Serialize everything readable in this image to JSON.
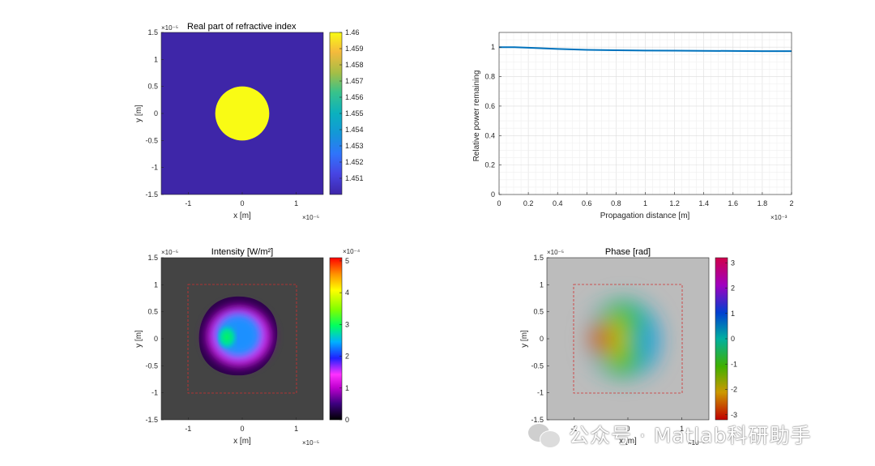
{
  "chart_data": [
    {
      "type": "heatmap",
      "title": "Real part of refractive index",
      "xlabel": "x [m]",
      "ylabel": "y [m]",
      "x_exponent": "×10⁻⁵",
      "y_exponent": "×10⁻⁵",
      "xlim": [
        -1.5,
        1.5
      ],
      "ylim": [
        -1.5,
        1.5
      ],
      "xticks": [
        "-1",
        "0",
        "1"
      ],
      "yticks": [
        "1.5",
        "1",
        "0.5",
        "0",
        "-0.5",
        "-1",
        "-1.5"
      ],
      "core_radius": 0.5,
      "core_index": 1.46,
      "cladding_index": 1.45,
      "colorbar": {
        "ticks": [
          "1.46",
          "1.459",
          "1.458",
          "1.457",
          "1.456",
          "1.455",
          "1.454",
          "1.453",
          "1.452",
          "1.451"
        ],
        "range": [
          1.45,
          1.46
        ],
        "colormap": "parula"
      }
    },
    {
      "type": "line",
      "xlabel": "Propagation distance [m]",
      "ylabel": "Relative power remaining",
      "x_exponent": "×10⁻³",
      "xlim": [
        0,
        2
      ],
      "ylim": [
        0,
        1.1
      ],
      "xticks": [
        "0",
        "0.2",
        "0.4",
        "0.6",
        "0.8",
        "1",
        "1.2",
        "1.4",
        "1.6",
        "1.8",
        "2"
      ],
      "yticks": [
        "1",
        "0.8",
        "0.6",
        "0.4",
        "0.2",
        "0"
      ],
      "grid": true,
      "series": [
        {
          "name": "power",
          "color": "#0072bd",
          "x": [
            0,
            0.1,
            0.2,
            0.4,
            0.6,
            0.8,
            1.0,
            1.2,
            1.4,
            1.6,
            1.8,
            2.0
          ],
          "y": [
            1.0,
            1.0,
            0.996,
            0.988,
            0.982,
            0.979,
            0.977,
            0.976,
            0.975,
            0.974,
            0.973,
            0.973
          ]
        }
      ]
    },
    {
      "type": "heatmap",
      "title": "Intensity [W/m²]",
      "xlabel": "x [m]",
      "ylabel": "y [m]",
      "x_exponent": "×10⁻⁵",
      "y_exponent": "×10⁻⁵",
      "xlim": [
        -1.5,
        1.5
      ],
      "ylim": [
        -1.5,
        1.5
      ],
      "xticks": [
        "-1",
        "0",
        "1"
      ],
      "yticks": [
        "1.5",
        "1",
        "0.5",
        "0",
        "-0.5",
        "-1",
        "-1.5"
      ],
      "window": [
        -1,
        1
      ],
      "colorbar": {
        "ticks": [
          "5",
          "4",
          "3",
          "2",
          "1",
          "0"
        ],
        "exponent": "×10⁻⁴",
        "range": [
          0,
          5.1
        ],
        "colormap": "gnuplot-like"
      }
    },
    {
      "type": "heatmap",
      "title": "Phase [rad]",
      "xlabel": "x [m]",
      "ylabel": "y [m]",
      "x_exponent": "×10⁻⁵",
      "y_exponent": "×10⁻⁵",
      "xlim": [
        -1.5,
        1.5
      ],
      "ylim": [
        -1.5,
        1.5
      ],
      "xticks": [
        "-1",
        "0",
        "1"
      ],
      "yticks": [
        "1.5",
        "1",
        "0.5",
        "0",
        "-0.5",
        "-1",
        "-1.5"
      ],
      "window": [
        -1,
        1
      ],
      "colorbar": {
        "ticks": [
          "3",
          "2",
          "1",
          "0",
          "-1",
          "-2",
          "-3"
        ],
        "range": [
          -3.2,
          3.2
        ],
        "colormap": "hsv"
      }
    }
  ],
  "watermark": {
    "text": "公众号 · Matlab科研助手"
  }
}
